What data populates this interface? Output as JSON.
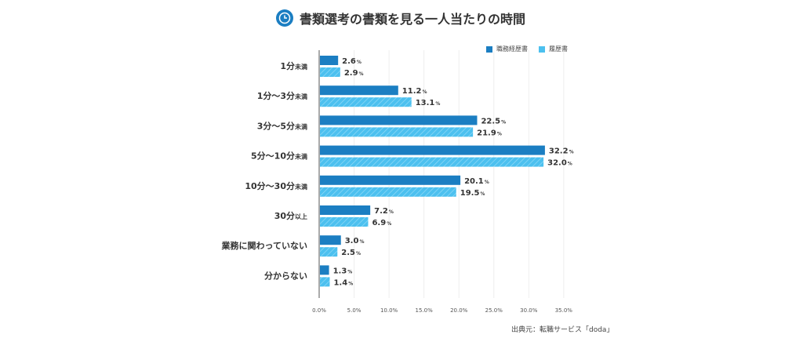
{
  "title": "書類選考の書類を見る一人当たりの時間",
  "title_icon": "clock-icon",
  "source": "出典元：転職サービス「doda」",
  "colors": {
    "series1": "#1b7ec2",
    "series2": "#4cc0ef"
  },
  "chart_data": {
    "type": "bar",
    "orientation": "horizontal",
    "title": "書類選考の書類を見る一人当たりの時間",
    "categories": [
      {
        "main": "1分",
        "suffix": "未満"
      },
      {
        "main": "1分〜3分",
        "suffix": "未満"
      },
      {
        "main": "3分〜5分",
        "suffix": "未満"
      },
      {
        "main": "5分〜10分",
        "suffix": "未満"
      },
      {
        "main": "10分〜30分",
        "suffix": "未満"
      },
      {
        "main": "30分",
        "suffix": "以上"
      },
      {
        "main": "業務に関わっていない",
        "suffix": ""
      },
      {
        "main": "分からない",
        "suffix": ""
      }
    ],
    "series": [
      {
        "name": "職務経歴書",
        "values": [
          2.6,
          11.2,
          22.5,
          32.2,
          20.1,
          7.2,
          3.0,
          1.3
        ],
        "labels": [
          "2.6",
          "11.2",
          "22.5",
          "32.2",
          "20.1",
          "7.2",
          "3.0",
          "1.3"
        ]
      },
      {
        "name": "履歴書",
        "values": [
          2.9,
          13.1,
          21.9,
          32.0,
          19.5,
          6.9,
          2.5,
          1.4
        ],
        "labels": [
          "2.9",
          "13.1",
          "21.9",
          "32.0",
          "19.5",
          "6.9",
          "2.5",
          "1.4"
        ]
      }
    ],
    "unit": "%",
    "xlim": [
      0,
      35
    ],
    "xticks": [
      "0.0%",
      "5.0%",
      "10.0%",
      "15.0%",
      "20.0%",
      "25.0%",
      "30.0%",
      "35.0%"
    ],
    "grid": true,
    "legend": "top-right"
  }
}
